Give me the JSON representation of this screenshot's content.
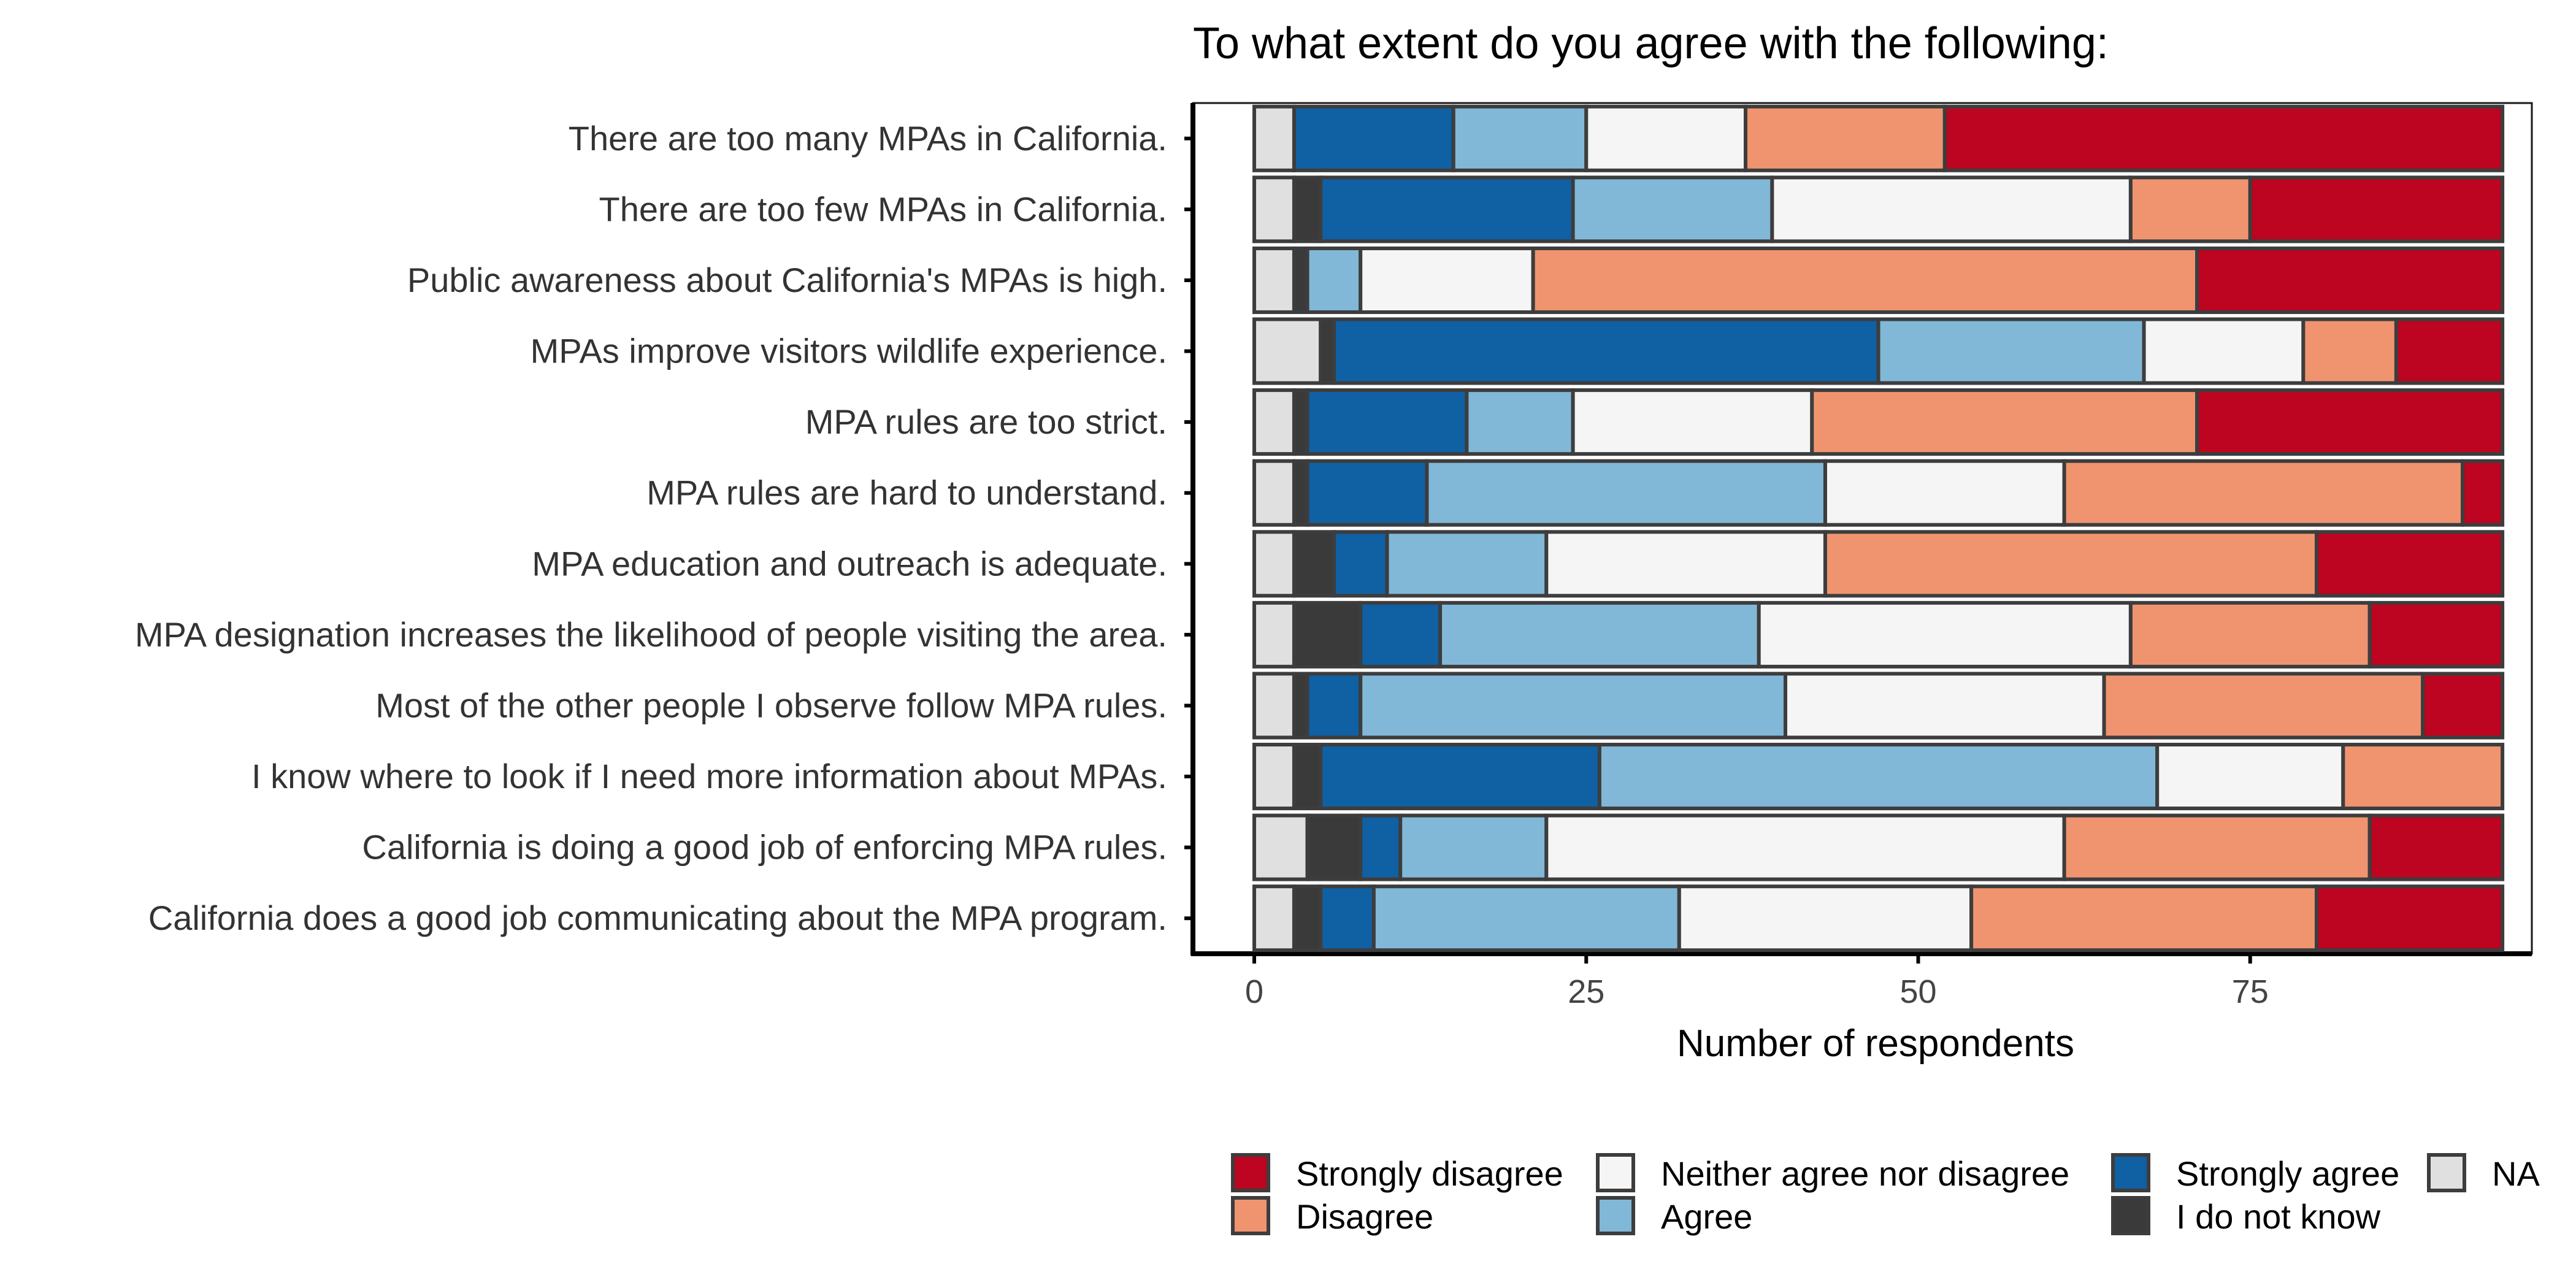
{
  "chart_data": {
    "type": "bar",
    "orientation": "horizontal",
    "stacked": true,
    "title": "To what extent do you agree with the following:",
    "xlabel": "Number of respondents",
    "ylabel": "",
    "xlim": [
      0,
      94
    ],
    "xticks": [
      0,
      25,
      50,
      75
    ],
    "legend_position": "bottom",
    "stack_order": [
      "NA",
      "I do not know",
      "Strongly agree",
      "Agree",
      "Neither agree nor disagree",
      "Disagree",
      "Strongly disagree"
    ],
    "legend_order": [
      "Strongly disagree",
      "Disagree",
      "Neither agree nor disagree",
      "Agree",
      "Strongly agree",
      "I do not know",
      "NA"
    ],
    "colors": {
      "NA": "#e0e0e0",
      "I do not know": "#3a3a3a",
      "Strongly agree": "#1060a4",
      "Agree": "#81b8d8",
      "Neither agree nor disagree": "#f5f5f5",
      "Disagree": "#f09470",
      "Strongly disagree": "#bd0420"
    },
    "categories": [
      "There are too many MPAs in California.",
      "There are too few MPAs in California.",
      "Public awareness about California's MPAs is high.",
      "MPAs improve visitors wildlife experience.",
      "MPA rules are too strict.",
      "MPA rules are hard to understand.",
      "MPA education and outreach is adequate.",
      "MPA designation increases the likelihood of people visiting the area.",
      "Most of the other people I observe follow MPA rules.",
      "I know where to look if I need more information about MPAs.",
      "California is doing a good job of enforcing MPA rules.",
      "California does a good job communicating about the MPA program."
    ],
    "series": [
      {
        "name": "NA",
        "values": [
          3,
          3,
          3,
          5,
          3,
          3,
          3,
          3,
          3,
          3,
          4,
          3
        ]
      },
      {
        "name": "I do not know",
        "values": [
          0,
          2,
          1,
          1,
          1,
          1,
          3,
          5,
          1,
          2,
          4,
          2
        ]
      },
      {
        "name": "Strongly agree",
        "values": [
          12,
          19,
          0,
          41,
          12,
          9,
          4,
          6,
          4,
          21,
          3,
          4
        ]
      },
      {
        "name": "Agree",
        "values": [
          10,
          15,
          4,
          20,
          8,
          30,
          12,
          24,
          32,
          42,
          11,
          23
        ]
      },
      {
        "name": "Neither agree nor disagree",
        "values": [
          12,
          27,
          13,
          12,
          18,
          18,
          21,
          28,
          24,
          14,
          39,
          22
        ]
      },
      {
        "name": "Disagree",
        "values": [
          15,
          9,
          50,
          7,
          29,
          30,
          37,
          18,
          24,
          12,
          23,
          26
        ]
      },
      {
        "name": "Strongly disagree",
        "values": [
          42,
          19,
          23,
          8,
          23,
          3,
          14,
          10,
          6,
          0,
          10,
          14
        ]
      }
    ]
  }
}
